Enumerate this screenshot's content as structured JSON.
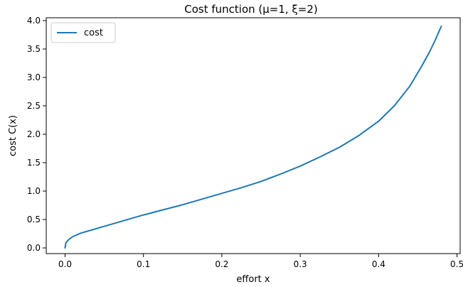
{
  "chart_data": {
    "type": "line",
    "title": "Cost function (μ=1, ξ=2)",
    "xlabel": "effort x",
    "ylabel": "cost C(x)",
    "xlim": [
      -0.024,
      0.504
    ],
    "ylim": [
      -0.1,
      4.05
    ],
    "x_ticks": [
      0.0,
      0.1,
      0.2,
      0.3,
      0.4,
      0.5
    ],
    "x_tick_labels": [
      "0.0",
      "0.1",
      "0.2",
      "0.3",
      "0.4",
      "0.5"
    ],
    "y_ticks": [
      0.0,
      0.5,
      1.0,
      1.5,
      2.0,
      2.5,
      3.0,
      3.5,
      4.0
    ],
    "y_tick_labels": [
      "0.0",
      "0.5",
      "1.0",
      "1.5",
      "2.0",
      "2.5",
      "3.0",
      "3.5",
      "4.0"
    ],
    "grid": false,
    "legend_position": "upper-left",
    "series": [
      {
        "name": "cost",
        "color": "#1f77b4",
        "x": [
          0.0,
          0.001,
          0.005,
          0.01,
          0.02,
          0.03,
          0.05,
          0.075,
          0.1,
          0.125,
          0.15,
          0.175,
          0.2,
          0.225,
          0.25,
          0.275,
          0.3,
          0.325,
          0.35,
          0.375,
          0.4,
          0.42,
          0.44,
          0.455,
          0.465,
          0.472,
          0.478,
          0.48
        ],
        "y": [
          0.0,
          0.09,
          0.15,
          0.2,
          0.26,
          0.3,
          0.38,
          0.48,
          0.58,
          0.67,
          0.76,
          0.86,
          0.96,
          1.06,
          1.17,
          1.3,
          1.44,
          1.6,
          1.77,
          1.98,
          2.23,
          2.5,
          2.85,
          3.2,
          3.45,
          3.65,
          3.84,
          3.9
        ]
      }
    ]
  }
}
